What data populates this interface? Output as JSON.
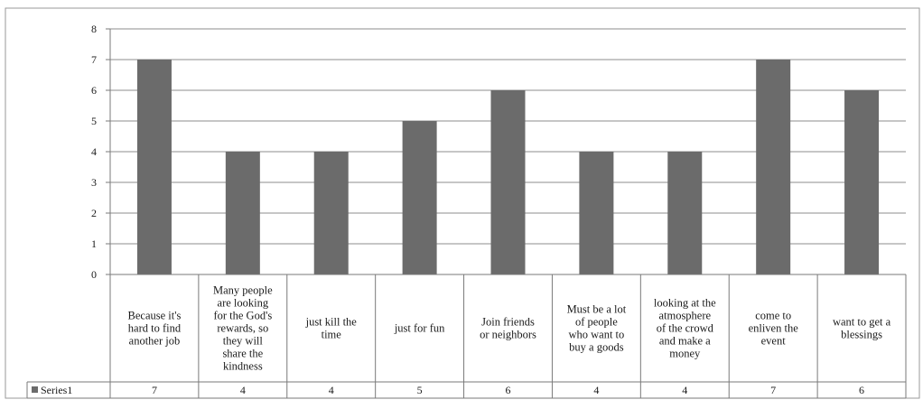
{
  "chart_data": {
    "type": "bar",
    "categories": [
      "Because it's hard to find another job",
      "Many people are looking for the God's rewards, so they will share the kindness",
      "just kill the time",
      "just for fun",
      "Join friends or neighbors",
      "Must be a lot of people who want to buy  a goods",
      "looking at the atmosphere of the crowd and make a money",
      "come to enliven the event",
      "want to get a blessings"
    ],
    "category_lines": [
      [
        "Because it's",
        "hard to find",
        "another job"
      ],
      [
        "Many people",
        "are looking",
        "for the God's",
        "rewards, so",
        "they will",
        "share the",
        "kindness"
      ],
      [
        "just kill the",
        "time"
      ],
      [
        "just for fun"
      ],
      [
        "Join friends",
        "or neighbors"
      ],
      [
        "Must be a lot",
        "of people",
        "who want to",
        "buy  a goods"
      ],
      [
        "looking at the",
        "atmosphere",
        "of the crowd",
        "and make a",
        "money"
      ],
      [
        "come to",
        "enliven the",
        "event"
      ],
      [
        "want to get a",
        "blessings"
      ]
    ],
    "series": [
      {
        "name": "Series1",
        "values": [
          7,
          4,
          4,
          5,
          6,
          4,
          4,
          7,
          6
        ],
        "color": "#6b6b6b"
      }
    ],
    "ylim": [
      0,
      8
    ],
    "yticks": [
      "0",
      "1",
      "2",
      "3",
      "4",
      "5",
      "6",
      "7",
      "8"
    ],
    "grid": true,
    "data_table": true,
    "title": "",
    "xlabel": "",
    "ylabel": ""
  }
}
